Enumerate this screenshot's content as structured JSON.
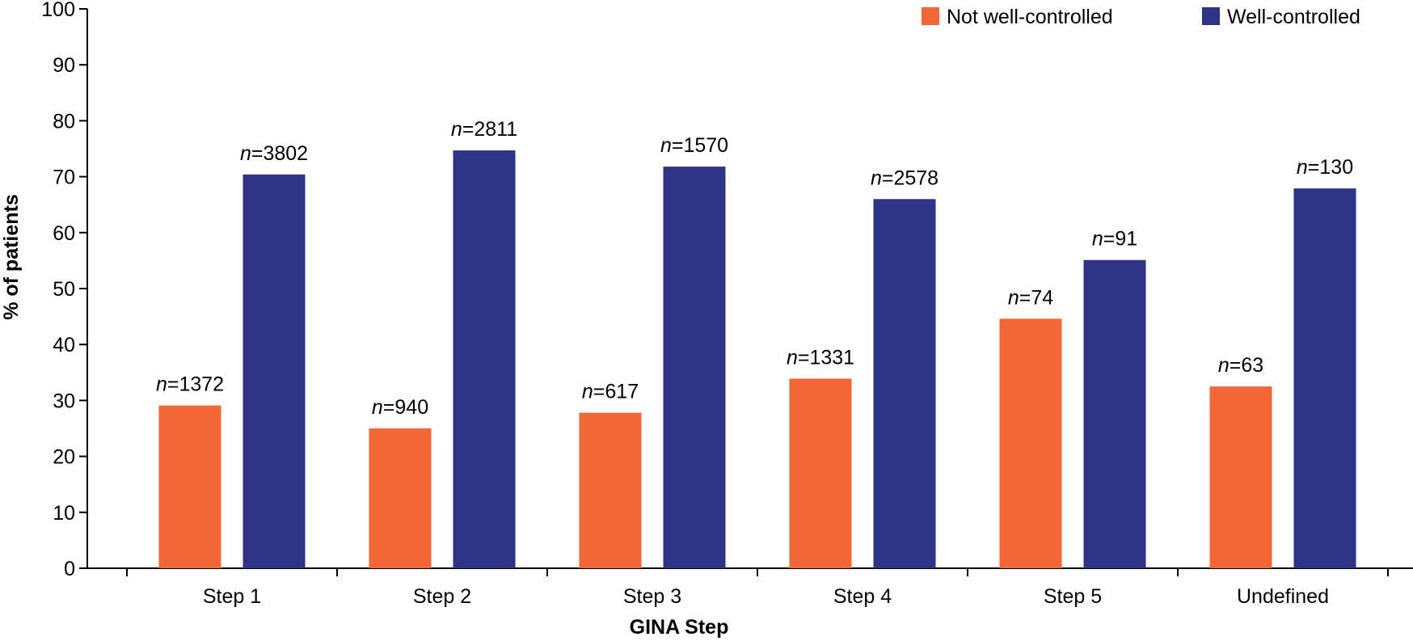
{
  "chart_data": {
    "type": "bar",
    "title": "",
    "xlabel": "GINA Step",
    "ylabel": "% of patients",
    "ylim": [
      0,
      100
    ],
    "yticks": [
      "0",
      "10",
      "20",
      "30",
      "40",
      "50",
      "60",
      "70",
      "80",
      "90",
      "100"
    ],
    "categories": [
      "Step 1",
      "Step 2",
      "Step 3",
      "Step 4",
      "Step 5",
      "Undefined"
    ],
    "legend_position": "top-right",
    "series": [
      {
        "name": "Not well-controlled",
        "color": "#F26735",
        "values": [
          29.1,
          25,
          27.8,
          33.9,
          44.6,
          32.5
        ],
        "n_prefix": "n",
        "n_values": [
          "=1372",
          "=940",
          "=617",
          "=1331",
          "=74",
          "=63"
        ]
      },
      {
        "name": "Well-controlled",
        "color": "#2E3385",
        "values": [
          70.4,
          74.7,
          71.8,
          66,
          55.1,
          67.9
        ],
        "n_prefix": "n",
        "n_values": [
          "=3802",
          "=2811",
          "=1570",
          "=2578",
          "=91",
          "=130"
        ]
      }
    ]
  }
}
